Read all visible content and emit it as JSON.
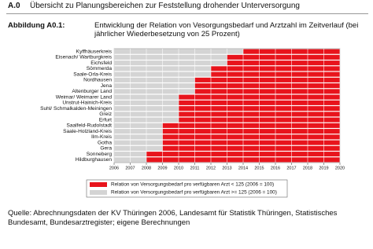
{
  "header": {
    "number": "A.0",
    "title": "Übersicht zu Planungsbereichen zur Feststellung drohender Unterversorgung"
  },
  "caption": {
    "label": "Abbildung A0.1:",
    "text": "Entwicklung der Relation von Vesorgungsbedarf und Arztzahl im Zeitverlauf (bei jährlicher Wiederbesetzung von 25 Prozent)"
  },
  "source": "Quelle: Abrechnungsdaten der KV Thüringen 2006, Landesamt für Statistik Thüringen, Statistisches Bundesamt, Bundesarztregister; eigene Berechnungen",
  "chart_data": {
    "type": "range-bar",
    "categories": [
      "Kyffhäuserkreis",
      "Eisenach/ Wartburgkreis",
      "Eichsfeld",
      "Sömmerda",
      "Saale-Orla-Kreis",
      "Nordhausen",
      "Jena",
      "Altenburger Land",
      "Weimar/ Weimarer Land",
      "Unstrut-Hainich-Kreis",
      "Suhl/ Schmalkalden-Meiningen",
      "Greiz",
      "Erfurt",
      "Saalfeld-Rudolstadt",
      "Saale-Holzland-Kreis",
      "Ilm-Kreis",
      "Gotha",
      "Gera",
      "Sonneberg",
      "Hildburghausen"
    ],
    "values": [
      2014,
      2013,
      2013,
      2012,
      2012,
      2011,
      2011,
      2011,
      2010,
      2010,
      2010,
      2010,
      2010,
      2009,
      2009,
      2009,
      2009,
      2009,
      2008,
      2008
    ],
    "xlim": [
      2006,
      2020
    ],
    "xticks": [
      2006,
      2007,
      2008,
      2009,
      2010,
      2011,
      2012,
      2013,
      2014,
      2015,
      2016,
      2017,
      2018,
      2019,
      2020
    ],
    "grid": true,
    "legend": [
      {
        "name": "Relation von Versorgungsbedarf pro verfügbaren Arzt < 125 (2006 = 100)",
        "color": "#e8141c"
      },
      {
        "name": "Relation von Versorgungsbedarf pro verfügbaren Arzt >= 125 (2006 = 100)",
        "color": "#d4d4d4"
      }
    ]
  }
}
